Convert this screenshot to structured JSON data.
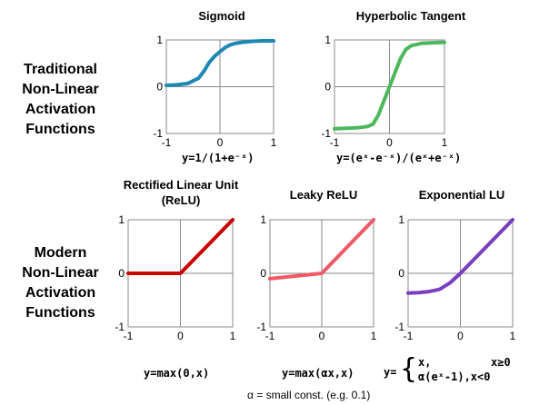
{
  "rows": {
    "traditional": [
      "Traditional",
      "Non-Linear",
      "Activation",
      "Functions"
    ],
    "modern": [
      "Modern",
      "Non-Linear",
      "Activation",
      "Functions"
    ]
  },
  "chart_data": [
    {
      "id": "sigmoid",
      "type": "line",
      "title": "Sigmoid",
      "formula": "y=1/(1+e⁻ˣ)",
      "xlim": [
        -1,
        1
      ],
      "ylim": [
        -1,
        1
      ],
      "xticks": [
        "-1",
        "0",
        "1"
      ],
      "yticks": [
        "-1",
        "0",
        "1"
      ],
      "color": "#1e88b4",
      "x": [
        -1,
        -0.8,
        -0.6,
        -0.4,
        -0.3,
        -0.2,
        -0.1,
        0,
        0.1,
        0.2,
        0.3,
        0.4,
        0.6,
        0.8,
        1
      ],
      "y": [
        0.03,
        0.04,
        0.07,
        0.18,
        0.33,
        0.52,
        0.65,
        0.75,
        0.84,
        0.9,
        0.93,
        0.95,
        0.97,
        0.98,
        0.98
      ]
    },
    {
      "id": "tanh",
      "type": "line",
      "title": "Hyperbolic Tangent",
      "formula": "y=(eˣ-e⁻ˣ)/(eˣ+e⁻ˣ)",
      "xlim": [
        -1,
        1
      ],
      "ylim": [
        -1,
        1
      ],
      "xticks": [
        "-1",
        "0",
        "1"
      ],
      "yticks": [
        "-1",
        "0",
        "1"
      ],
      "color": "#4cb85c",
      "x": [
        -1,
        -0.6,
        -0.4,
        -0.3,
        -0.2,
        -0.1,
        0,
        0.1,
        0.2,
        0.3,
        0.4,
        0.6,
        1
      ],
      "y": [
        -0.9,
        -0.88,
        -0.85,
        -0.8,
        -0.6,
        -0.3,
        0,
        0.3,
        0.6,
        0.8,
        0.88,
        0.93,
        0.95
      ]
    },
    {
      "id": "relu",
      "type": "line",
      "title": "Rectified Linear Unit (ReLU)",
      "formula": "y=max(0,x)",
      "xlim": [
        -1,
        1
      ],
      "ylim": [
        -1,
        1
      ],
      "xticks": [
        "-1",
        "0",
        "1"
      ],
      "yticks": [
        "-1",
        "0",
        "1"
      ],
      "color": "#cc0000",
      "x": [
        -1,
        0,
        1
      ],
      "y": [
        0,
        0,
        1
      ]
    },
    {
      "id": "leaky_relu",
      "type": "line",
      "title": "Leaky ReLU",
      "formula": "y=max(αx,x)",
      "xlim": [
        -1,
        1
      ],
      "ylim": [
        -1,
        1
      ],
      "xticks": [
        "-1",
        "0",
        "1"
      ],
      "yticks": [
        "-1",
        "0",
        "1"
      ],
      "color": "#ef5a66",
      "x": [
        -1,
        0,
        1
      ],
      "y": [
        -0.1,
        0,
        1
      ]
    },
    {
      "id": "elu",
      "type": "line",
      "title": "Exponential LU",
      "formula_parts": {
        "prefix": "y=",
        "line1_a": "x,",
        "line1_b": "x≥0",
        "line2": "α(eˣ-1),x<0"
      },
      "xlim": [
        -1,
        1
      ],
      "ylim": [
        -1,
        1
      ],
      "xticks": [
        "-1",
        "0",
        "1"
      ],
      "yticks": [
        "-1",
        "0",
        "1"
      ],
      "color": "#7a3fbf",
      "x": [
        -1,
        -0.8,
        -0.6,
        -0.4,
        -0.2,
        0,
        1
      ],
      "y": [
        -0.37,
        -0.36,
        -0.34,
        -0.3,
        -0.18,
        0,
        1
      ]
    }
  ],
  "footnote": "α = small const. (e.g. 0.1)"
}
